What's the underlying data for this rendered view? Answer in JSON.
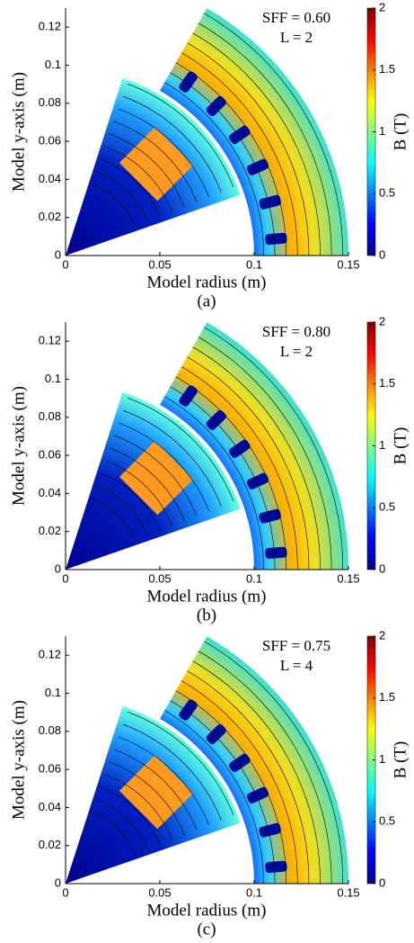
{
  "chart_data": [
    {
      "type": "field-map",
      "xlabel": "Model radius (m)",
      "ylabel": "Model y-axis  (m)",
      "xlim": [
        0,
        0.15
      ],
      "ylim": [
        0,
        0.13
      ],
      "xticks": [
        0,
        0.05,
        0.1,
        0.15
      ],
      "yticks": [
        0,
        0.02,
        0.04,
        0.06,
        0.08,
        0.1,
        0.12
      ],
      "colorbar_label": "B (T)",
      "clim": [
        0,
        2
      ],
      "cticks": [
        0,
        0.5,
        1,
        1.5,
        2
      ],
      "annotations": [
        "SFF = 0.60",
        "L = 2"
      ],
      "caption": "(a)"
    },
    {
      "type": "field-map",
      "xlabel": "Model radius (m)",
      "ylabel": "Model y-axis  (m)",
      "xlim": [
        0,
        0.15
      ],
      "ylim": [
        0,
        0.13
      ],
      "xticks": [
        0,
        0.05,
        0.1,
        0.15
      ],
      "yticks": [
        0,
        0.02,
        0.04,
        0.06,
        0.08,
        0.1,
        0.12
      ],
      "colorbar_label": "B (T)",
      "clim": [
        0,
        2
      ],
      "cticks": [
        0,
        0.5,
        1,
        1.5,
        2
      ],
      "annotations": [
        "SFF = 0.80",
        "L = 2"
      ],
      "caption": "(b)"
    },
    {
      "type": "field-map",
      "xlabel": "Model radius (m)",
      "ylabel": "Model y-axis  (m)",
      "xlim": [
        0,
        0.15
      ],
      "ylim": [
        0,
        0.13
      ],
      "xticks": [
        0,
        0.05,
        0.1,
        0.15
      ],
      "yticks": [
        0,
        0.02,
        0.04,
        0.06,
        0.08,
        0.1,
        0.12
      ],
      "colorbar_label": "B (T)",
      "clim": [
        0,
        2
      ],
      "cticks": [
        0,
        0.5,
        1,
        1.5,
        2
      ],
      "annotations": [
        "SFF = 0.75",
        "L = 4"
      ],
      "caption": "(c)"
    }
  ]
}
